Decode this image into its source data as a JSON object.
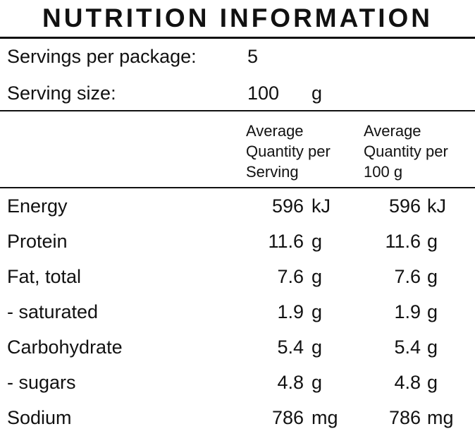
{
  "panel": {
    "title": "NUTRITION INFORMATION",
    "servings_label": "Servings per package:",
    "servings_value": "5",
    "serving_size_label": "Serving size:",
    "serving_size_value": "100",
    "serving_size_unit": "g",
    "columns": [
      {
        "line1": "Average",
        "line2": "Quantity per",
        "line3": "Serving"
      },
      {
        "line1": "Average",
        "line2": "Quantity per",
        "line3": "100 g"
      }
    ],
    "rows": [
      {
        "label": "Energy",
        "per_serving": "596",
        "per_serving_unit": "kJ",
        "per_100g": "596",
        "per_100g_unit": "kJ"
      },
      {
        "label": "Protein",
        "per_serving": "11.6",
        "per_serving_unit": "g",
        "per_100g": "11.6",
        "per_100g_unit": "g"
      },
      {
        "label": "Fat, total",
        "per_serving": "7.6",
        "per_serving_unit": "g",
        "per_100g": "7.6",
        "per_100g_unit": "g"
      },
      {
        "label": "- saturated",
        "per_serving": "1.9",
        "per_serving_unit": "g",
        "per_100g": "1.9",
        "per_100g_unit": "g"
      },
      {
        "label": "Carbohydrate",
        "per_serving": "5.4",
        "per_serving_unit": "g",
        "per_100g": "5.4",
        "per_100g_unit": "g"
      },
      {
        "label": "- sugars",
        "per_serving": "4.8",
        "per_serving_unit": "g",
        "per_100g": "4.8",
        "per_100g_unit": "g"
      },
      {
        "label": "Sodium",
        "per_serving": "786",
        "per_serving_unit": "mg",
        "per_100g": "786",
        "per_100g_unit": "mg"
      }
    ]
  }
}
